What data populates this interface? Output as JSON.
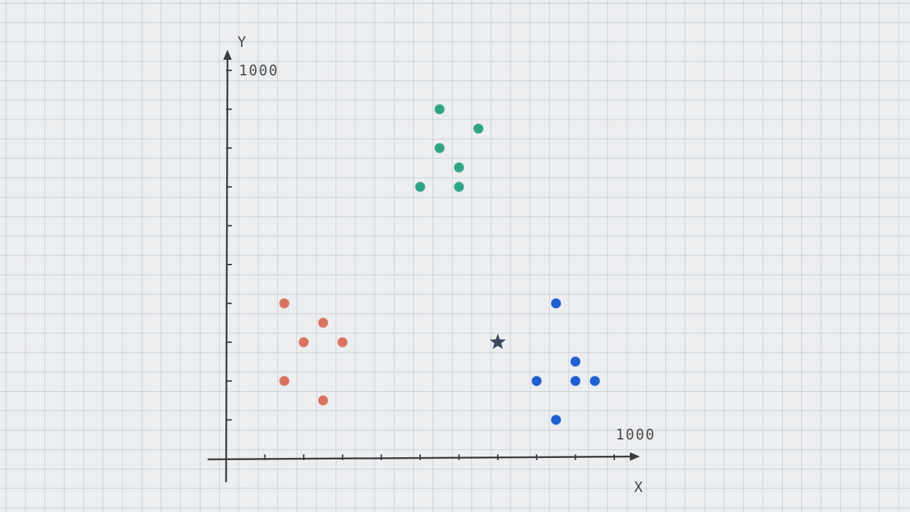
{
  "chart_data": {
    "type": "scatter",
    "title": "",
    "xlabel": "X",
    "ylabel": "Y",
    "x_tick_label": "1000",
    "y_tick_label": "1000",
    "xlim": [
      0,
      1000
    ],
    "ylim": [
      0,
      1000
    ],
    "grid": true,
    "series": [
      {
        "color": "#d9735f",
        "points": [
          [
            150,
            400
          ],
          [
            150,
            200
          ],
          [
            200,
            300
          ],
          [
            250,
            350
          ],
          [
            250,
            150
          ],
          [
            300,
            300
          ]
        ]
      },
      {
        "color": "#2fa585",
        "points": [
          [
            500,
            700
          ],
          [
            550,
            800
          ],
          [
            550,
            900
          ],
          [
            600,
            750
          ],
          [
            600,
            700
          ],
          [
            650,
            850
          ]
        ]
      },
      {
        "color": "#1f5fd0",
        "points": [
          [
            800,
            200
          ],
          [
            850,
            400
          ],
          [
            850,
            100
          ],
          [
            900,
            250
          ],
          [
            900,
            200
          ],
          [
            950,
            200
          ]
        ]
      }
    ],
    "annotations": [
      {
        "marker": "star",
        "color": "#3a4a5c",
        "point": [
          700,
          300
        ]
      }
    ]
  }
}
